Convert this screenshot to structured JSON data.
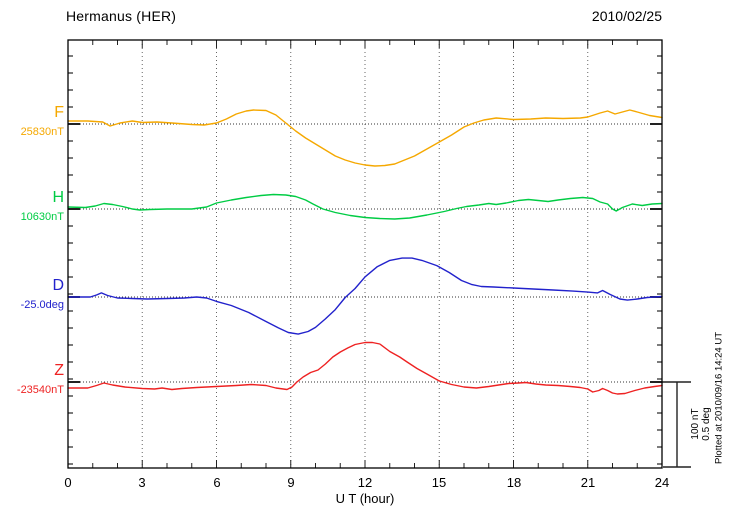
{
  "header": {
    "station_title": "Hermanus (HER)",
    "date": "2010/02/25"
  },
  "xaxis": {
    "label": "U T (hour)",
    "tick_labels": [
      "0",
      "3",
      "6",
      "9",
      "12",
      "15",
      "18",
      "21",
      "24"
    ]
  },
  "scale_bar": {
    "line1": "100 nT",
    "line2": "0.5 deg"
  },
  "footer_note": "Plotted at 2010/09/16 14:24 UT",
  "chart_data": {
    "type": "line",
    "title": "Hermanus (HER) magnetogram",
    "date": "2010/02/25",
    "xlabel": "U T (hour)",
    "x_range": [
      0,
      24
    ],
    "x_ticks": [
      0,
      3,
      6,
      9,
      12,
      15,
      18,
      21,
      24
    ],
    "grid": "dotted vertical lines every 3 hours; dotted horizontal baseline per trace",
    "legend_position": "left margin (trace letter + baseline value)",
    "scale_division": {
      "nT": 100,
      "deg": 0.5
    },
    "series": [
      {
        "name": "F",
        "baseline_label": "25830nT",
        "baseline_value": 25830,
        "unit": "nT",
        "color": "#f5a800",
        "points_offset_from_baseline": [
          [
            0,
            3.5
          ],
          [
            0.8,
            3.5
          ],
          [
            1.4,
            2.4
          ],
          [
            1.7,
            -2.4
          ],
          [
            2.1,
            1.2
          ],
          [
            2.6,
            3.5
          ],
          [
            3,
            1.8
          ],
          [
            3.6,
            2.4
          ],
          [
            4.2,
            1.2
          ],
          [
            5,
            -0.6
          ],
          [
            5.5,
            -1.2
          ],
          [
            6,
            1.2
          ],
          [
            6.4,
            5.9
          ],
          [
            6.8,
            11.8
          ],
          [
            7.2,
            15.3
          ],
          [
            7.5,
            16.5
          ],
          [
            8,
            15.9
          ],
          [
            8.4,
            10.6
          ],
          [
            8.8,
            1.2
          ],
          [
            9.2,
            -8.2
          ],
          [
            9.6,
            -16.5
          ],
          [
            10,
            -23.5
          ],
          [
            10.4,
            -30.6
          ],
          [
            10.8,
            -37.6
          ],
          [
            11.2,
            -42.4
          ],
          [
            11.6,
            -45.9
          ],
          [
            12,
            -48.2
          ],
          [
            12.4,
            -49.4
          ],
          [
            12.8,
            -48.8
          ],
          [
            13.2,
            -47.1
          ],
          [
            13.6,
            -42.4
          ],
          [
            14,
            -37.6
          ],
          [
            14.5,
            -29.4
          ],
          [
            15,
            -21.2
          ],
          [
            15.5,
            -12.9
          ],
          [
            16,
            -3.5
          ],
          [
            16.4,
            1.2
          ],
          [
            16.8,
            4.7
          ],
          [
            17.3,
            7.1
          ],
          [
            18,
            5.3
          ],
          [
            18.7,
            5.9
          ],
          [
            19.3,
            7.1
          ],
          [
            20,
            6.5
          ],
          [
            20.7,
            7.1
          ],
          [
            21,
            8.2
          ],
          [
            21.5,
            12.9
          ],
          [
            21.8,
            15.3
          ],
          [
            22.1,
            11.8
          ],
          [
            22.4,
            14.1
          ],
          [
            22.7,
            16.5
          ],
          [
            23,
            14.1
          ],
          [
            23.5,
            10
          ],
          [
            24,
            7.6
          ]
        ]
      },
      {
        "name": "H",
        "baseline_label": "10630nT",
        "baseline_value": 10630,
        "unit": "nT",
        "color": "#00cc44",
        "points_offset_from_baseline": [
          [
            0,
            2.4
          ],
          [
            0.7,
            1.8
          ],
          [
            1.1,
            3.5
          ],
          [
            1.45,
            6.5
          ],
          [
            1.8,
            5.3
          ],
          [
            2.2,
            2.9
          ],
          [
            2.6,
            0
          ],
          [
            2.9,
            -1.2
          ],
          [
            3.3,
            -0.6
          ],
          [
            4,
            0
          ],
          [
            5,
            0
          ],
          [
            5.6,
            2.4
          ],
          [
            6,
            7.1
          ],
          [
            6.6,
            10.6
          ],
          [
            7.2,
            13.5
          ],
          [
            7.8,
            15.9
          ],
          [
            8.3,
            17.1
          ],
          [
            8.8,
            16.5
          ],
          [
            9.2,
            14.7
          ],
          [
            9.6,
            10.6
          ],
          [
            9.9,
            5.9
          ],
          [
            10.3,
            0
          ],
          [
            10.8,
            -4.1
          ],
          [
            11.4,
            -7.6
          ],
          [
            12,
            -10
          ],
          [
            12.6,
            -11.2
          ],
          [
            13.2,
            -11.8
          ],
          [
            13.8,
            -10.6
          ],
          [
            14.5,
            -7.1
          ],
          [
            15.2,
            -2.9
          ],
          [
            15.7,
            0.6
          ],
          [
            16.1,
            2.9
          ],
          [
            16.6,
            4.7
          ],
          [
            17,
            6.5
          ],
          [
            17.3,
            5.3
          ],
          [
            17.7,
            7.1
          ],
          [
            18.2,
            10
          ],
          [
            18.6,
            11.2
          ],
          [
            19,
            10
          ],
          [
            19.4,
            8.8
          ],
          [
            19.8,
            10.6
          ],
          [
            20.3,
            12.4
          ],
          [
            20.8,
            13.5
          ],
          [
            21.2,
            12.4
          ],
          [
            21.5,
            8.2
          ],
          [
            21.8,
            5.9
          ],
          [
            22,
            0
          ],
          [
            22.15,
            -2.4
          ],
          [
            22.4,
            1.8
          ],
          [
            22.8,
            5.9
          ],
          [
            23.2,
            4.1
          ],
          [
            23.6,
            5.9
          ],
          [
            24,
            6.5
          ]
        ]
      },
      {
        "name": "D",
        "baseline_label": "-25.0deg",
        "baseline_value": -25.0,
        "unit": "deg",
        "color": "#2222cc",
        "points_offset_from_baseline": [
          [
            0,
            0
          ],
          [
            0.9,
            0
          ],
          [
            1.15,
            0.012
          ],
          [
            1.35,
            0.024
          ],
          [
            1.6,
            0.009
          ],
          [
            2,
            -0.006
          ],
          [
            2.6,
            -0.009
          ],
          [
            3.2,
            -0.012
          ],
          [
            4,
            -0.009
          ],
          [
            4.7,
            -0.006
          ],
          [
            5.2,
            0
          ],
          [
            5.6,
            -0.006
          ],
          [
            6,
            -0.026
          ],
          [
            6.6,
            -0.05
          ],
          [
            7.3,
            -0.091
          ],
          [
            8,
            -0.144
          ],
          [
            8.5,
            -0.182
          ],
          [
            8.9,
            -0.209
          ],
          [
            9.3,
            -0.218
          ],
          [
            9.7,
            -0.203
          ],
          [
            10,
            -0.179
          ],
          [
            10.4,
            -0.129
          ],
          [
            10.8,
            -0.074
          ],
          [
            11.2,
            -0.003
          ],
          [
            11.6,
            0.05
          ],
          [
            12,
            0.118
          ],
          [
            12.5,
            0.179
          ],
          [
            13,
            0.215
          ],
          [
            13.5,
            0.229
          ],
          [
            13.9,
            0.229
          ],
          [
            14.3,
            0.215
          ],
          [
            14.9,
            0.185
          ],
          [
            15.4,
            0.144
          ],
          [
            15.9,
            0.097
          ],
          [
            16.3,
            0.074
          ],
          [
            16.7,
            0.062
          ],
          [
            17.2,
            0.059
          ],
          [
            18,
            0.053
          ],
          [
            18.8,
            0.047
          ],
          [
            19.6,
            0.041
          ],
          [
            20.4,
            0.035
          ],
          [
            21,
            0.029
          ],
          [
            21.4,
            0.024
          ],
          [
            21.6,
            0.038
          ],
          [
            21.9,
            0.015
          ],
          [
            22.3,
            -0.012
          ],
          [
            22.6,
            -0.018
          ],
          [
            23,
            -0.012
          ],
          [
            23.4,
            -0.003
          ],
          [
            24,
            0.003
          ]
        ]
      },
      {
        "name": "Z",
        "baseline_label": "-23540nT",
        "baseline_value": -23540,
        "unit": "nT",
        "color": "#ee2222",
        "points_offset_from_baseline": [
          [
            0,
            -7.1
          ],
          [
            0.8,
            -7.1
          ],
          [
            1.15,
            -4.1
          ],
          [
            1.45,
            -1.2
          ],
          [
            1.8,
            -3.5
          ],
          [
            2.3,
            -5.9
          ],
          [
            3,
            -7.6
          ],
          [
            3.5,
            -8.2
          ],
          [
            3.8,
            -7.1
          ],
          [
            4.2,
            -8.8
          ],
          [
            4.6,
            -7.6
          ],
          [
            5.2,
            -6.5
          ],
          [
            6,
            -5.3
          ],
          [
            6.8,
            -4.1
          ],
          [
            7.4,
            -2.9
          ],
          [
            8,
            -4.1
          ],
          [
            8.4,
            -7.1
          ],
          [
            8.85,
            -8.8
          ],
          [
            9.05,
            -5.9
          ],
          [
            9.25,
            0
          ],
          [
            9.5,
            5.9
          ],
          [
            9.8,
            11.2
          ],
          [
            10.1,
            14.1
          ],
          [
            10.4,
            21.2
          ],
          [
            10.7,
            29.4
          ],
          [
            11,
            35.3
          ],
          [
            11.3,
            40
          ],
          [
            11.6,
            44.1
          ],
          [
            12,
            46.5
          ],
          [
            12.3,
            46.5
          ],
          [
            12.6,
            44.7
          ],
          [
            13,
            35.9
          ],
          [
            13.4,
            29.4
          ],
          [
            13.7,
            23.5
          ],
          [
            14.1,
            15.9
          ],
          [
            14.5,
            9.4
          ],
          [
            15,
            1.2
          ],
          [
            15.5,
            -2.9
          ],
          [
            16,
            -5.9
          ],
          [
            16.5,
            -7.1
          ],
          [
            17,
            -5.3
          ],
          [
            17.4,
            -3.5
          ],
          [
            17.8,
            -1.8
          ],
          [
            18.2,
            -1.2
          ],
          [
            18.5,
            -0.6
          ],
          [
            18.9,
            -2.4
          ],
          [
            19.3,
            -3.5
          ],
          [
            19.8,
            -4.1
          ],
          [
            20.3,
            -5.3
          ],
          [
            20.7,
            -6.5
          ],
          [
            21,
            -8.2
          ],
          [
            21.2,
            -11.8
          ],
          [
            21.45,
            -10
          ],
          [
            21.6,
            -7.6
          ],
          [
            21.8,
            -10
          ],
          [
            22,
            -12.9
          ],
          [
            22.2,
            -14.1
          ],
          [
            22.5,
            -13.5
          ],
          [
            22.9,
            -10
          ],
          [
            23.3,
            -7.1
          ],
          [
            23.7,
            -5.3
          ],
          [
            24,
            -4.1
          ]
        ]
      }
    ]
  }
}
